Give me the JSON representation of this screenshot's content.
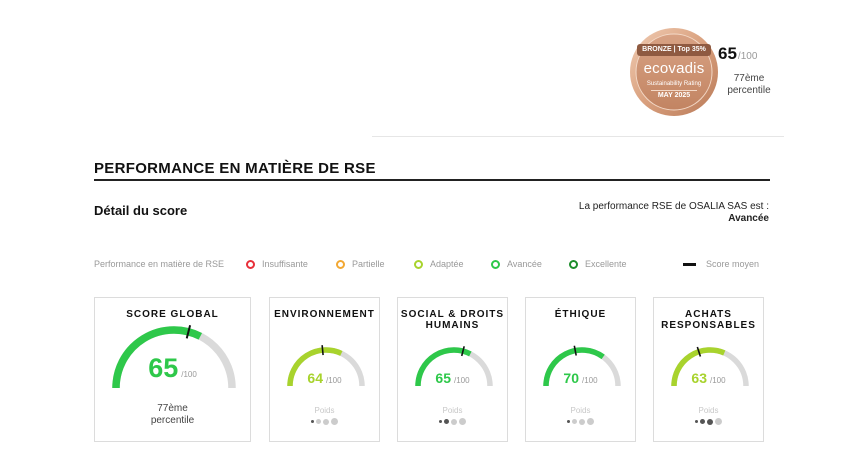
{
  "badge": {
    "top_label": "BRONZE | Top 35%",
    "brand": "ecovadis",
    "subtitle": "Sustainability Rating",
    "date": "MAY 2025",
    "score": "65",
    "score_max": "/100",
    "percentile_line1": "77ème",
    "percentile_line2": "percentile",
    "colors": {
      "bronze_dark": "#c98f6b",
      "bronze_light": "#e9bfa3",
      "ribbon": "#8f5a41"
    }
  },
  "section": {
    "title": "PERFORMANCE EN MATIÈRE DE RSE"
  },
  "detail": {
    "title": "Détail du score",
    "performance_text": "La performance RSE de OSALIA SAS est :",
    "performance_level": "Avancée"
  },
  "legend": {
    "label": "Performance en matière de RSE",
    "items": [
      {
        "label": "Insuffisante",
        "color": "#e8303a"
      },
      {
        "label": "Partielle",
        "color": "#f2a833"
      },
      {
        "label": "Adaptée",
        "color": "#a8d32d"
      },
      {
        "label": "Avancée",
        "color": "#2ec84a"
      },
      {
        "label": "Excellente",
        "color": "#1c8d2b"
      }
    ],
    "average_label": "Score moyen"
  },
  "cards": [
    {
      "title": "SCORE GLOBAL",
      "score": "65",
      "score_max": "/100",
      "percentile_line1": "77ème",
      "percentile_line2": "percentile",
      "value": 65,
      "average": 58,
      "color": "#2ec84a"
    },
    {
      "title": "ENVIRONNEMENT",
      "score": "64",
      "score_max": "/100",
      "poids_label": "Poids",
      "value": 64,
      "average": 47,
      "color": "#a8d32d",
      "weight": 1
    },
    {
      "title": "SOCIAL & DROITS HUMAINS",
      "score": "65",
      "score_max": "/100",
      "poids_label": "Poids",
      "value": 65,
      "average": 58,
      "color": "#2ec84a",
      "weight": 2
    },
    {
      "title": "ÉTHIQUE",
      "score": "70",
      "score_max": "/100",
      "poids_label": "Poids",
      "value": 70,
      "average": 44,
      "color": "#2ec84a",
      "weight": 1
    },
    {
      "title": "ACHATS RESPONSABLES",
      "score": "63",
      "score_max": "/100",
      "poids_label": "Poids",
      "value": 63,
      "average": 40,
      "color": "#a8d32d",
      "weight": 3
    }
  ]
}
